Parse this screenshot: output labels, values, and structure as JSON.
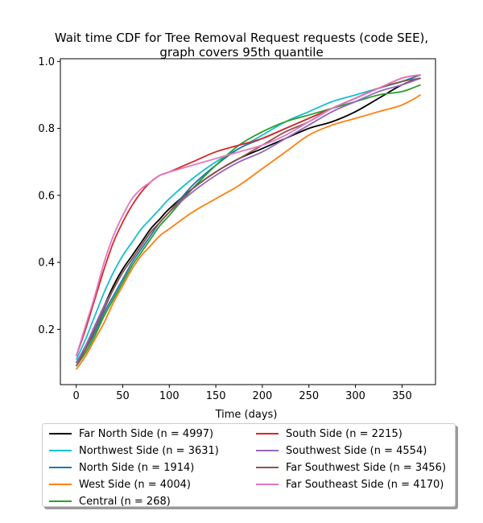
{
  "chart_data": {
    "type": "line",
    "title_line1": "Wait time CDF for Tree Removal Request  requests (code SEE),",
    "title_line2": "graph covers 95th quantile",
    "xlabel": "Time (days)",
    "ylabel": "",
    "xlim": [
      -17,
      386
    ],
    "ylim": [
      0.035,
      1.008
    ],
    "x_ticks": [
      0,
      50,
      100,
      150,
      200,
      250,
      300,
      350
    ],
    "y_ticks": [
      0.2,
      0.4,
      0.6,
      0.8,
      1.0
    ],
    "y_tick_labels": [
      "0.2",
      "0.4",
      "0.6",
      "0.8",
      "1.0"
    ],
    "grid": false,
    "legend_position": "below-plot",
    "x": [
      0,
      10,
      20,
      30,
      40,
      50,
      60,
      70,
      80,
      90,
      100,
      125,
      150,
      175,
      200,
      225,
      250,
      275,
      300,
      325,
      350,
      370
    ],
    "series": [
      {
        "name": "Far North Side (n = 4997)",
        "color": "#000000",
        "values": [
          0.1,
          0.15,
          0.21,
          0.27,
          0.33,
          0.38,
          0.42,
          0.46,
          0.5,
          0.53,
          0.56,
          0.62,
          0.67,
          0.71,
          0.74,
          0.77,
          0.8,
          0.82,
          0.85,
          0.89,
          0.93,
          0.95
        ]
      },
      {
        "name": "Northwest Side (n = 3631)",
        "color": "#17becf",
        "values": [
          0.11,
          0.17,
          0.24,
          0.31,
          0.37,
          0.42,
          0.46,
          0.5,
          0.53,
          0.56,
          0.59,
          0.65,
          0.7,
          0.74,
          0.78,
          0.82,
          0.85,
          0.88,
          0.9,
          0.92,
          0.94,
          0.96
        ]
      },
      {
        "name": "North Side (n = 1914)",
        "color": "#1f77b4",
        "values": [
          0.1,
          0.14,
          0.19,
          0.25,
          0.3,
          0.35,
          0.4,
          0.44,
          0.48,
          0.52,
          0.55,
          0.63,
          0.69,
          0.74,
          0.77,
          0.8,
          0.83,
          0.86,
          0.89,
          0.92,
          0.94,
          0.96
        ]
      },
      {
        "name": "West Side (n = 4004)",
        "color": "#ff7f0e",
        "values": [
          0.08,
          0.12,
          0.17,
          0.22,
          0.28,
          0.33,
          0.38,
          0.42,
          0.45,
          0.48,
          0.5,
          0.55,
          0.59,
          0.63,
          0.68,
          0.73,
          0.78,
          0.81,
          0.83,
          0.85,
          0.87,
          0.9
        ]
      },
      {
        "name": "Central (n = 268)",
        "color": "#2ca02c",
        "values": [
          0.09,
          0.13,
          0.18,
          0.24,
          0.29,
          0.34,
          0.39,
          0.43,
          0.47,
          0.51,
          0.54,
          0.62,
          0.69,
          0.75,
          0.79,
          0.82,
          0.84,
          0.86,
          0.88,
          0.9,
          0.91,
          0.93
        ]
      },
      {
        "name": "South Side (n = 2215)",
        "color": "#d62728",
        "values": [
          0.12,
          0.2,
          0.29,
          0.38,
          0.46,
          0.52,
          0.57,
          0.61,
          0.64,
          0.66,
          0.67,
          0.7,
          0.73,
          0.75,
          0.77,
          0.8,
          0.83,
          0.86,
          0.89,
          0.92,
          0.95,
          0.96
        ]
      },
      {
        "name": "Southwest Side (n = 4554)",
        "color": "#9467bd",
        "values": [
          0.1,
          0.15,
          0.21,
          0.27,
          0.32,
          0.37,
          0.41,
          0.45,
          0.49,
          0.52,
          0.55,
          0.61,
          0.66,
          0.7,
          0.73,
          0.77,
          0.81,
          0.85,
          0.88,
          0.91,
          0.93,
          0.95
        ]
      },
      {
        "name": "Far Southwest Side (n = 3456)",
        "color": "#8c564b",
        "values": [
          0.09,
          0.14,
          0.2,
          0.26,
          0.32,
          0.37,
          0.41,
          0.45,
          0.49,
          0.52,
          0.55,
          0.62,
          0.67,
          0.71,
          0.75,
          0.79,
          0.82,
          0.86,
          0.89,
          0.92,
          0.94,
          0.95
        ]
      },
      {
        "name": "Far Southeast Side (n = 4170)",
        "color": "#e377c2",
        "values": [
          0.12,
          0.21,
          0.3,
          0.4,
          0.48,
          0.54,
          0.59,
          0.62,
          0.64,
          0.66,
          0.67,
          0.69,
          0.71,
          0.73,
          0.75,
          0.78,
          0.82,
          0.86,
          0.89,
          0.92,
          0.95,
          0.96
        ]
      }
    ]
  }
}
